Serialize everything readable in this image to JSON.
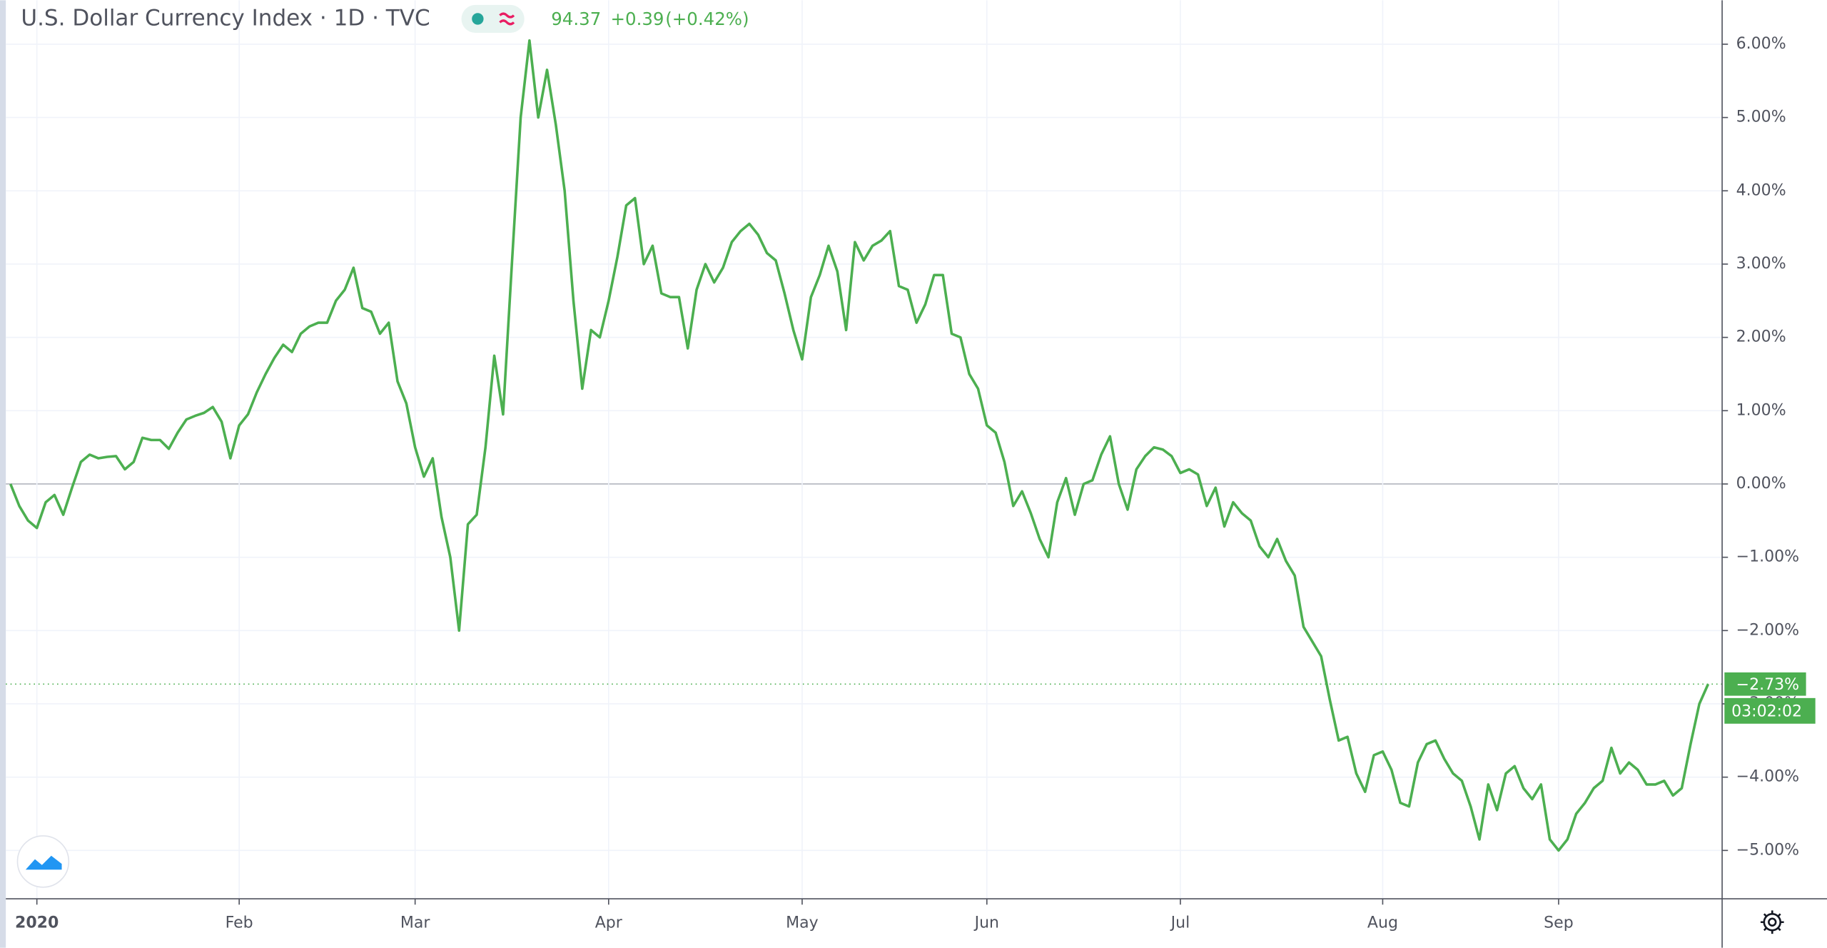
{
  "chart_data": {
    "type": "line",
    "title": "U.S. Dollar Currency Index · 1D · TVC",
    "price": 94.37,
    "change": "+0.39",
    "change_pct": "(+0.42%)",
    "last_value_label": "−2.73%",
    "countdown": "03:02:02",
    "color": "#4caf50",
    "grid": true,
    "ylim": [
      -5.66,
      6.6
    ],
    "yticks": [
      {
        "value": 6,
        "label": "6.00%"
      },
      {
        "value": 5,
        "label": "5.00%"
      },
      {
        "value": 4,
        "label": "4.00%"
      },
      {
        "value": 3,
        "label": "3.00%"
      },
      {
        "value": 2,
        "label": "2.00%"
      },
      {
        "value": 1,
        "label": "1.00%"
      },
      {
        "value": 0,
        "label": "0.00%"
      },
      {
        "value": -1,
        "label": "−1.00%"
      },
      {
        "value": -2,
        "label": "−2.00%"
      },
      {
        "value": -3,
        "label": "−3.00%"
      },
      {
        "value": -4,
        "label": "−4.00%"
      },
      {
        "value": -5,
        "label": "−5.00%"
      }
    ],
    "categories": [
      null,
      null,
      null,
      "2020",
      null,
      null,
      null,
      null,
      null,
      null,
      null,
      null,
      null,
      null,
      null,
      null,
      null,
      null,
      null,
      null,
      null,
      null,
      null,
      null,
      null,
      null,
      "Feb",
      null,
      null,
      null,
      null,
      null,
      null,
      null,
      null,
      null,
      null,
      null,
      null,
      null,
      null,
      null,
      null,
      null,
      null,
      null,
      "Mar",
      null,
      null,
      null,
      null,
      null,
      null,
      null,
      null,
      null,
      null,
      null,
      null,
      null,
      null,
      null,
      null,
      null,
      null,
      null,
      null,
      null,
      "Apr",
      null,
      null,
      null,
      null,
      null,
      null,
      null,
      null,
      null,
      null,
      null,
      null,
      null,
      null,
      null,
      null,
      null,
      null,
      null,
      null,
      null,
      "May",
      null,
      null,
      null,
      null,
      null,
      null,
      null,
      null,
      null,
      null,
      null,
      null,
      null,
      null,
      null,
      null,
      null,
      null,
      null,
      null,
      "Jun",
      null,
      null,
      null,
      null,
      null,
      null,
      null,
      null,
      null,
      null,
      null,
      null,
      null,
      null,
      null,
      null,
      null,
      null,
      null,
      null,
      null,
      "Jul",
      null,
      null,
      null,
      null,
      null,
      null,
      null,
      null,
      null,
      null,
      null,
      null,
      null,
      null,
      null,
      null,
      null,
      null,
      null,
      null,
      null,
      null,
      "Aug",
      null,
      null,
      null,
      null,
      null,
      null,
      null,
      null,
      null,
      null,
      null,
      null,
      null,
      null,
      null,
      null,
      null,
      null,
      null,
      "Sep",
      null,
      null,
      null,
      null,
      null,
      null,
      null,
      null,
      null,
      null,
      null,
      null,
      null,
      null,
      null,
      null,
      null
    ],
    "values": [
      0,
      -0.3,
      -0.5,
      -0.6,
      -0.25,
      -0.15,
      -0.42,
      -0.05,
      0.3,
      0.4,
      0.35,
      0.37,
      0.38,
      0.2,
      0.3,
      0.63,
      0.6,
      0.6,
      0.48,
      0.7,
      0.88,
      0.93,
      0.97,
      1.05,
      0.85,
      0.35,
      0.8,
      0.95,
      1.25,
      1.5,
      1.72,
      1.9,
      1.8,
      2.05,
      2.15,
      2.2,
      2.2,
      2.5,
      2.65,
      2.95,
      2.4,
      2.35,
      2.05,
      2.2,
      1.4,
      1.1,
      0.5,
      0.1,
      0.35,
      -0.45,
      -1.0,
      -2.0,
      -0.55,
      -0.42,
      0.5,
      1.75,
      0.95,
      3.0,
      5.0,
      6.05,
      5.0,
      5.65,
      4.9,
      4.0,
      2.5,
      1.3,
      2.1,
      2.0,
      2.5,
      3.1,
      3.8,
      3.9,
      3.0,
      3.25,
      2.6,
      2.55,
      2.55,
      1.85,
      2.65,
      3.0,
      2.75,
      2.95,
      3.3,
      3.45,
      3.55,
      3.4,
      3.15,
      3.05,
      2.6,
      2.1,
      1.7,
      2.55,
      2.85,
      3.25,
      2.9,
      2.1,
      3.3,
      3.05,
      3.25,
      3.32,
      3.45,
      2.7,
      2.65,
      2.2,
      2.45,
      2.85,
      2.85,
      2.05,
      2.0,
      1.5,
      1.3,
      0.8,
      0.7,
      0.3,
      -0.3,
      -0.1,
      -0.4,
      -0.75,
      -1.0,
      -0.25,
      0.08,
      -0.42,
      0.0,
      0.05,
      0.4,
      0.65,
      0.0,
      -0.35,
      0.2,
      0.38,
      0.5,
      0.47,
      0.38,
      0.15,
      0.2,
      0.13,
      -0.3,
      -0.05,
      -0.58,
      -0.25,
      -0.4,
      -0.5,
      -0.85,
      -1.0,
      -0.75,
      -1.05,
      -1.25,
      -1.95,
      -2.15,
      -2.35,
      -2.95,
      -3.5,
      -3.45,
      -3.95,
      -4.2,
      -3.7,
      -3.65,
      -3.9,
      -4.35,
      -4.4,
      -3.8,
      -3.55,
      -3.5,
      -3.75,
      -3.95,
      -4.05,
      -4.4,
      -4.85,
      -4.1,
      -4.45,
      -3.95,
      -3.85,
      -4.15,
      -4.3,
      -4.1,
      -4.85,
      -5.0,
      -4.85,
      -4.5,
      -4.35,
      -4.15,
      -4.05,
      -3.6,
      -3.95,
      -3.8,
      -3.9,
      -4.1,
      -4.1,
      -4.05,
      -4.25,
      -4.15,
      -3.55,
      -3.0,
      -2.73
    ]
  }
}
